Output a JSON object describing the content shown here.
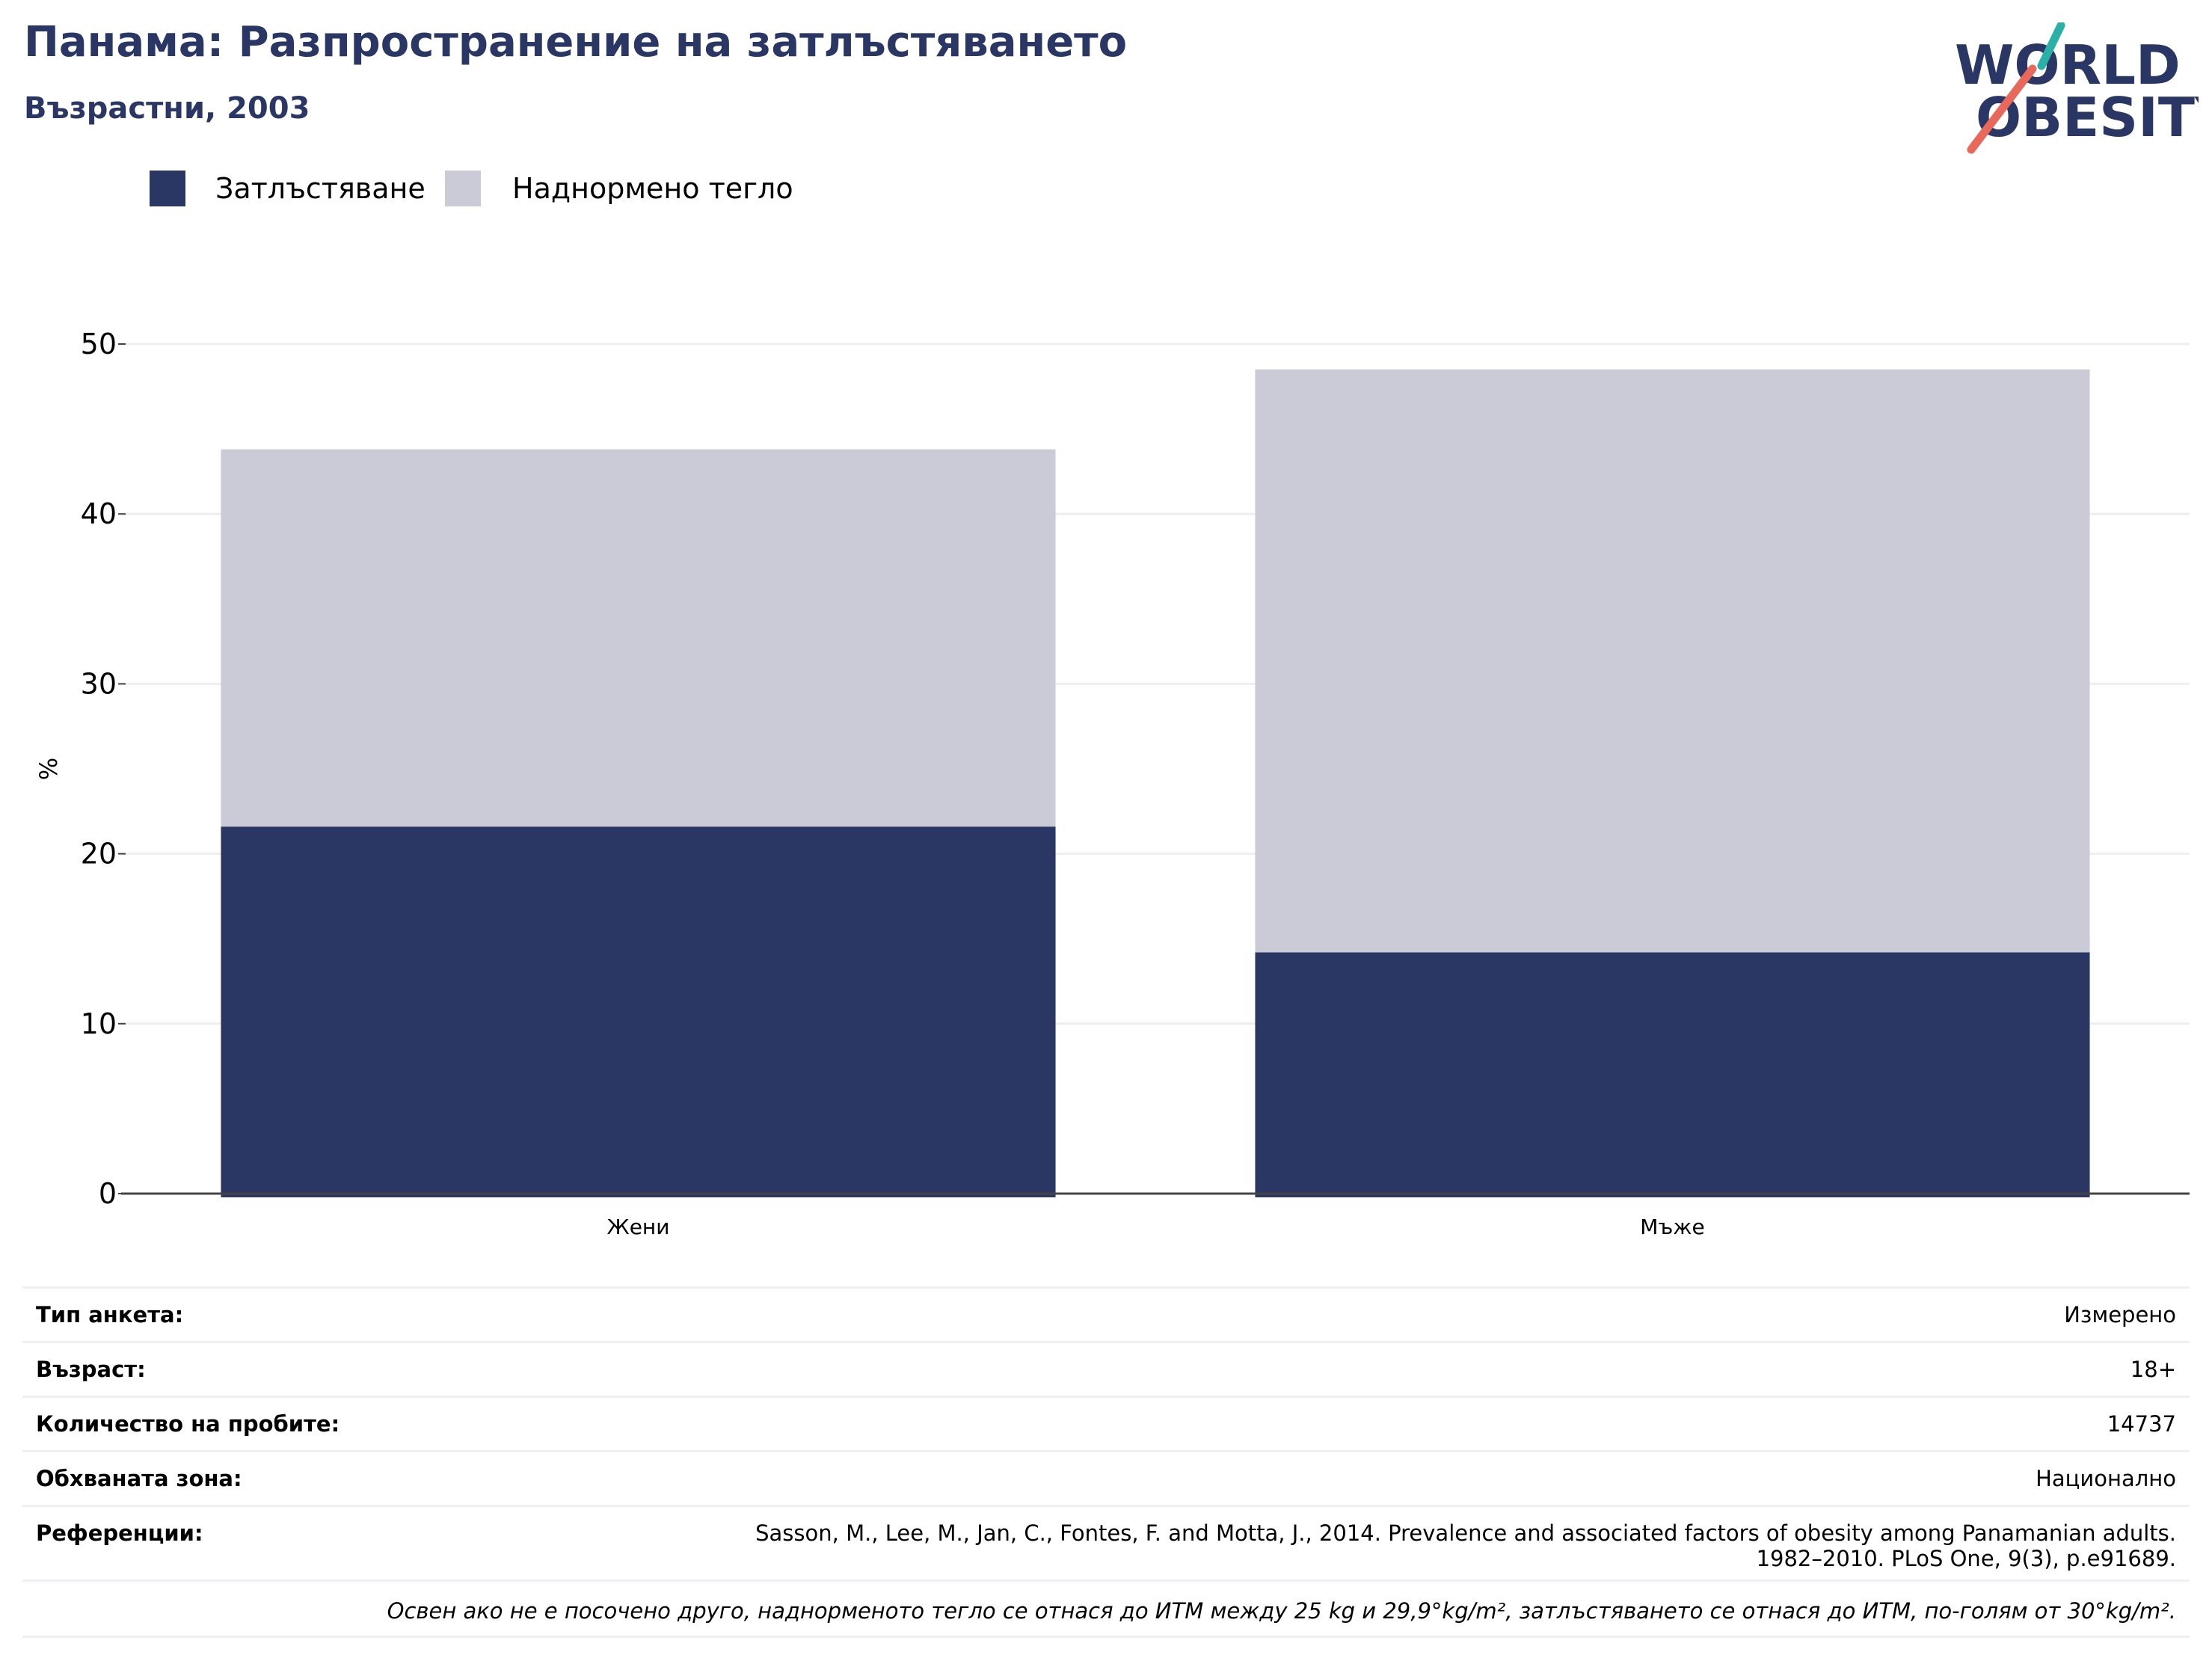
{
  "header": {
    "title": "Панама: Разпространение на затлъстяването",
    "subtitle": "Възрастни, 2003"
  },
  "logo": {
    "line1": "WORLD",
    "line2": "OBESITY"
  },
  "colors": {
    "obesity": "#2a3664",
    "overweight": "#cacbd7",
    "title": "#2a3664",
    "grid": "#eeeeee",
    "accent_teal": "#2bb0a7",
    "accent_red": "#e8685a"
  },
  "legend": {
    "items": [
      {
        "label": "Затлъстяване",
        "color": "#2a3664"
      },
      {
        "label": "Наднормено тегло",
        "color": "#cacbd7"
      }
    ]
  },
  "chart_data": {
    "type": "bar",
    "stacked": true,
    "categories": [
      "Жени",
      "Мъже"
    ],
    "series": [
      {
        "name": "Затлъстяване",
        "values": [
          21.6,
          14.2
        ]
      },
      {
        "name": "Наднормено тегло",
        "values": [
          22.2,
          34.3
        ]
      }
    ],
    "ylabel": "%",
    "ylim": [
      0,
      50
    ],
    "yticks": [
      0,
      10,
      20,
      30,
      40,
      50
    ],
    "grid": true
  },
  "info": {
    "rows": [
      {
        "key": "Тип анкета:",
        "value": "Измерено"
      },
      {
        "key": "Възраст:",
        "value": "18+"
      },
      {
        "key": "Количество на пробите:",
        "value": "14737"
      },
      {
        "key": "Обхваната зона:",
        "value": "Национално"
      },
      {
        "key": "Референции:",
        "value_lines": [
          "Sasson, M., Lee, M., Jan, C., Fontes, F. and Motta, J., 2014. Prevalence and associated factors of obesity among Panamanian adults.",
          "1982–2010. PLoS One, 9(3), p.e91689."
        ]
      }
    ],
    "note": "Освен ако не е посочено друго, наднорменото тегло се отнася до ИТМ между 25 kg и 29,9°kg/m², затлъстяването се отнася до ИТМ, по-голям от 30°kg/m²."
  }
}
